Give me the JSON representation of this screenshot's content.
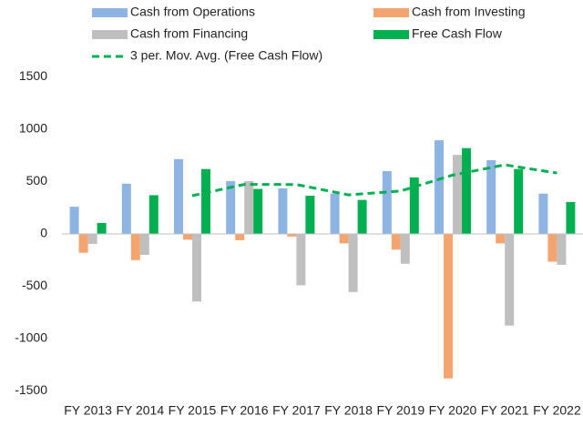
{
  "chart_data": {
    "type": "bar",
    "categories": [
      "FY 2013",
      "FY 2014",
      "FY 2015",
      "FY 2016",
      "FY 2017",
      "FY 2018",
      "FY 2019",
      "FY 2020",
      "FY 2021",
      "FY 2022"
    ],
    "series": [
      {
        "name": "Cash from Operations",
        "color": "#8eb4e3",
        "values": [
          260,
          480,
          715,
          505,
          435,
          385,
          600,
          895,
          705,
          385
        ]
      },
      {
        "name": "Cash from Investing",
        "color": "#f4a46e",
        "values": [
          -180,
          -250,
          -55,
          -60,
          -25,
          -90,
          -150,
          -1380,
          -90,
          -265
        ]
      },
      {
        "name": "Cash from Financing",
        "color": "#bfbfbf",
        "values": [
          -95,
          -200,
          -645,
          505,
          -490,
          -555,
          -285,
          755,
          -875,
          -295
        ]
      },
      {
        "name": "Free Cash Flow",
        "color": "#00b050",
        "values": [
          105,
          370,
          620,
          430,
          365,
          325,
          540,
          820,
          620,
          305
        ]
      }
    ],
    "moving_average": {
      "name": "3 per. Mov. Avg. (Free Cash Flow)",
      "color": "#00b050",
      "values": [
        null,
        null,
        365,
        473,
        472,
        373,
        410,
        562,
        660,
        582
      ]
    },
    "ylim": [
      -1500,
      1500
    ],
    "yticks": [
      -1500,
      -1000,
      -500,
      0,
      500,
      1000,
      1500
    ],
    "grid": false
  }
}
